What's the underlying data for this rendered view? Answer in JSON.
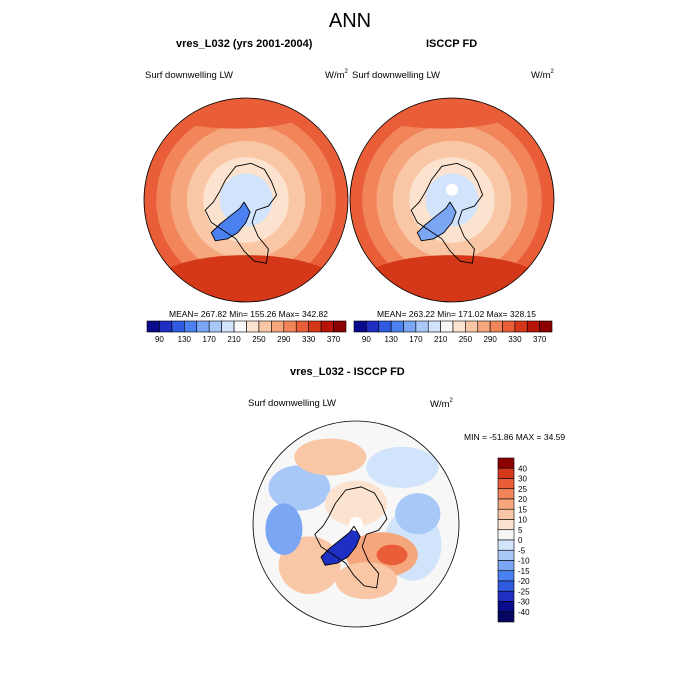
{
  "title": "ANN",
  "panels": [
    {
      "title": "vres_L032 (yrs 2001-2004)",
      "variable": "Surf downwelling LW",
      "units": "W/m",
      "units_sup": "2",
      "stats": "MEAN= 267.82  Min= 155.26  Max= 342.82"
    },
    {
      "title": "ISCCP FD",
      "variable": "Surf downwelling LW",
      "units": "W/m",
      "units_sup": "2",
      "stats": "MEAN= 263.22  Min= 171.02  Max= 328.15"
    },
    {
      "title": "vres_L032 - ISCCP FD",
      "variable": "Surf downwelling LW",
      "units": "W/m",
      "units_sup": "2",
      "stats": "MIN = -51.86 MAX =  34.59"
    }
  ],
  "chart_data": [
    {
      "type": "heatmap",
      "projection": "north polar stereographic",
      "title": "vres_L032 (yrs 2001-2004)",
      "field": "Surf downwelling LW",
      "units": "W/m2",
      "mean": 267.82,
      "min": 155.26,
      "max": 342.82,
      "colorbar": {
        "orientation": "horizontal",
        "levels": [
          90,
          110,
          130,
          150,
          170,
          190,
          210,
          230,
          250,
          270,
          290,
          310,
          330,
          350,
          370
        ],
        "tick_labels": [
          "90",
          "130",
          "170",
          "210",
          "250",
          "290",
          "330",
          "370"
        ],
        "colors": [
          "#0a0a8c",
          "#1f2fc4",
          "#2e5be0",
          "#4a80ef",
          "#7aa6f4",
          "#a8c8f8",
          "#d2e4fb",
          "#f7f7f7",
          "#fbe3cf",
          "#f9c7a5",
          "#f6a67d",
          "#f2845a",
          "#e95e38",
          "#d43818",
          "#b71508",
          "#8c0000"
        ]
      }
    },
    {
      "type": "heatmap",
      "projection": "north polar stereographic",
      "title": "ISCCP FD",
      "field": "Surf downwelling LW",
      "units": "W/m2",
      "mean": 263.22,
      "min": 171.02,
      "max": 328.15,
      "colorbar": {
        "orientation": "horizontal",
        "levels": [
          90,
          110,
          130,
          150,
          170,
          190,
          210,
          230,
          250,
          270,
          290,
          310,
          330,
          350,
          370
        ],
        "tick_labels": [
          "90",
          "130",
          "170",
          "210",
          "250",
          "290",
          "330",
          "370"
        ],
        "colors": [
          "#0a0a8c",
          "#1f2fc4",
          "#2e5be0",
          "#4a80ef",
          "#7aa6f4",
          "#a8c8f8",
          "#d2e4fb",
          "#f7f7f7",
          "#fbe3cf",
          "#f9c7a5",
          "#f6a67d",
          "#f2845a",
          "#e95e38",
          "#d43818",
          "#b71508",
          "#8c0000"
        ]
      }
    },
    {
      "type": "heatmap",
      "projection": "north polar stereographic",
      "title": "vres_L032 - ISCCP FD",
      "field": "Surf downwelling LW",
      "units": "W/m2",
      "min": -51.86,
      "max": 34.59,
      "colorbar": {
        "orientation": "vertical",
        "levels": [
          40,
          30,
          25,
          20,
          15,
          10,
          5,
          0,
          -5,
          -10,
          -15,
          -20,
          -25,
          -30,
          -40
        ],
        "tick_labels": [
          "40",
          "30",
          "25",
          "20",
          "15",
          "10",
          "5",
          "0",
          "-5",
          "-10",
          "-15",
          "-20",
          "-25",
          "-30",
          "-40"
        ],
        "colors": [
          "#8c0000",
          "#d43818",
          "#e95e38",
          "#f2845a",
          "#f6a67d",
          "#f9c7a5",
          "#fbe3cf",
          "#f7f7f7",
          "#d2e4fb",
          "#a8c8f8",
          "#7aa6f4",
          "#4a80ef",
          "#2e5be0",
          "#1f2fc4",
          "#0a0a8c",
          "#060660"
        ]
      }
    }
  ]
}
